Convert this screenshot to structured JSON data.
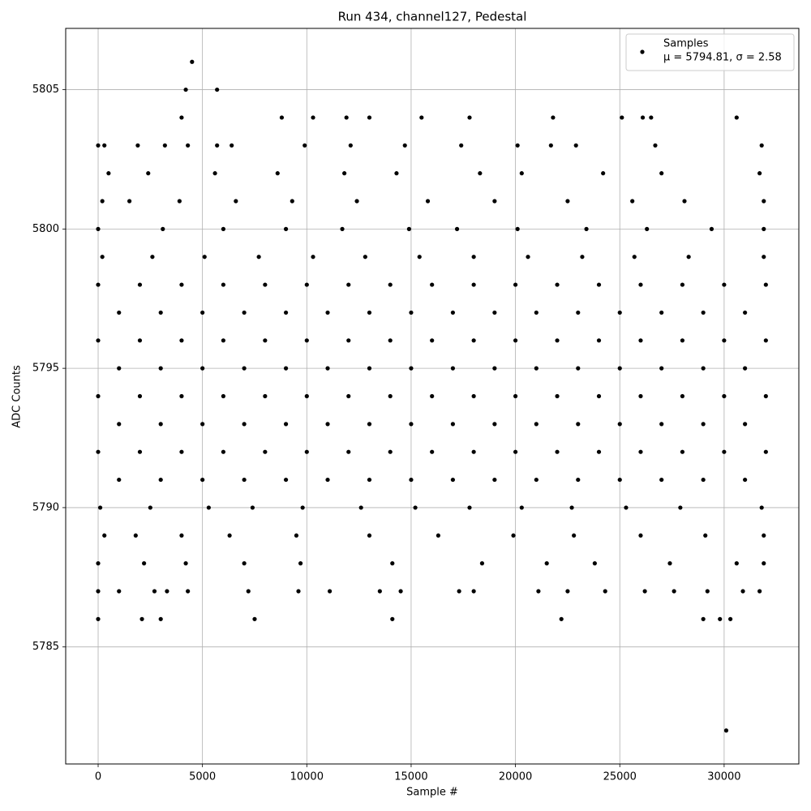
{
  "chart_data": {
    "type": "scatter",
    "title": "Run 434, channel127, Pedestal",
    "x_label": "Sample #",
    "y_label": "ADC Counts",
    "annotation": "μ = 5794.81, σ = 2.58",
    "xlim": [
      -1555,
      33580
    ],
    "ylim": [
      5780.8,
      5807.2
    ],
    "xticks": [
      0,
      5000,
      10000,
      15000,
      20000,
      25000,
      30000
    ],
    "yticks": [
      5785,
      5790,
      5795,
      5800,
      5805
    ],
    "grid": true,
    "legend": "upper right",
    "series": [
      {
        "name": "Samples",
        "color": "#000000",
        "x": [
          0,
          2000,
          4000,
          6000,
          8000,
          10000,
          12000,
          14000,
          16000,
          18000,
          20000,
          22000,
          24000,
          26000,
          28000,
          30000,
          32000,
          1000,
          3000,
          5000,
          7000,
          9000,
          11000,
          13000,
          15000,
          17000,
          19000,
          21000,
          23000,
          25000,
          27000,
          29000,
          31000,
          0,
          2000,
          4000,
          6000,
          8000,
          10000,
          12000,
          14000,
          16000,
          18000,
          20000,
          22000,
          24000,
          26000,
          28000,
          30000,
          32000,
          1000,
          3000,
          5000,
          7000,
          9000,
          11000,
          13000,
          15000,
          17000,
          19000,
          21000,
          23000,
          25000,
          27000,
          29000,
          31000,
          0,
          2000,
          4000,
          6000,
          8000,
          10000,
          12000,
          14000,
          16000,
          18000,
          20000,
          22000,
          24000,
          26000,
          28000,
          30000,
          32000,
          1000,
          3000,
          5000,
          7000,
          9000,
          11000,
          13000,
          15000,
          17000,
          19000,
          21000,
          23000,
          25000,
          27000,
          29000,
          31000,
          0,
          2000,
          4000,
          6000,
          8000,
          10000,
          12000,
          14000,
          16000,
          18000,
          20000,
          22000,
          24000,
          26000,
          28000,
          30000,
          32000,
          1000,
          3000,
          5000,
          7000,
          9000,
          11000,
          13000,
          15000,
          17000,
          19000,
          21000,
          23000,
          25000,
          27000,
          29000,
          31000,
          200,
          2600,
          5100,
          7700,
          10300,
          12800,
          15400,
          18000,
          20600,
          23200,
          25700,
          28300,
          31900,
          100,
          2500,
          5300,
          7400,
          9800,
          12600,
          15200,
          17800,
          20300,
          22700,
          25300,
          27900,
          31800,
          0,
          3100,
          6000,
          9000,
          11700,
          14900,
          17200,
          20100,
          23400,
          26300,
          29400,
          31900,
          200,
          1500,
          3900,
          6600,
          9300,
          12400,
          15800,
          19000,
          22500,
          25600,
          28100,
          31900,
          300,
          1800,
          4000,
          6300,
          9500,
          13000,
          16300,
          19900,
          22800,
          26000,
          29100,
          31900,
          500,
          2400,
          5600,
          8600,
          11800,
          14300,
          18300,
          20300,
          24200,
          27000,
          31700,
          0,
          2200,
          4200,
          7000,
          9700,
          14100,
          18400,
          21500,
          23800,
          27400,
          30600,
          31900,
          0,
          300,
          1900,
          3200,
          4300,
          5700,
          6400,
          9900,
          12100,
          14700,
          17400,
          20100,
          21700,
          22900,
          26700,
          31800,
          0,
          1000,
          2700,
          3300,
          4300,
          7200,
          9600,
          11100,
          13500,
          14500,
          17300,
          18000,
          21100,
          22500,
          24300,
          26200,
          27600,
          29200,
          30900,
          31700,
          0,
          2100,
          3000,
          7500,
          14100,
          22200,
          29000,
          29800,
          30300,
          4000,
          8800,
          10300,
          11900,
          13000,
          15500,
          17800,
          21800,
          25100,
          26100,
          26500,
          30600,
          4200,
          5700,
          4500,
          30100
        ],
        "values": [
          5798,
          5798,
          5798,
          5798,
          5798,
          5798,
          5798,
          5798,
          5798,
          5798,
          5798,
          5798,
          5798,
          5798,
          5798,
          5798,
          5798,
          5797,
          5797,
          5797,
          5797,
          5797,
          5797,
          5797,
          5797,
          5797,
          5797,
          5797,
          5797,
          5797,
          5797,
          5797,
          5797,
          5796,
          5796,
          5796,
          5796,
          5796,
          5796,
          5796,
          5796,
          5796,
          5796,
          5796,
          5796,
          5796,
          5796,
          5796,
          5796,
          5796,
          5795,
          5795,
          5795,
          5795,
          5795,
          5795,
          5795,
          5795,
          5795,
          5795,
          5795,
          5795,
          5795,
          5795,
          5795,
          5795,
          5794,
          5794,
          5794,
          5794,
          5794,
          5794,
          5794,
          5794,
          5794,
          5794,
          5794,
          5794,
          5794,
          5794,
          5794,
          5794,
          5794,
          5793,
          5793,
          5793,
          5793,
          5793,
          5793,
          5793,
          5793,
          5793,
          5793,
          5793,
          5793,
          5793,
          5793,
          5793,
          5793,
          5792,
          5792,
          5792,
          5792,
          5792,
          5792,
          5792,
          5792,
          5792,
          5792,
          5792,
          5792,
          5792,
          5792,
          5792,
          5792,
          5792,
          5791,
          5791,
          5791,
          5791,
          5791,
          5791,
          5791,
          5791,
          5791,
          5791,
          5791,
          5791,
          5791,
          5791,
          5791,
          5791,
          5799,
          5799,
          5799,
          5799,
          5799,
          5799,
          5799,
          5799,
          5799,
          5799,
          5799,
          5799,
          5799,
          5790,
          5790,
          5790,
          5790,
          5790,
          5790,
          5790,
          5790,
          5790,
          5790,
          5790,
          5790,
          5790,
          5800,
          5800,
          5800,
          5800,
          5800,
          5800,
          5800,
          5800,
          5800,
          5800,
          5800,
          5800,
          5801,
          5801,
          5801,
          5801,
          5801,
          5801,
          5801,
          5801,
          5801,
          5801,
          5801,
          5801,
          5789,
          5789,
          5789,
          5789,
          5789,
          5789,
          5789,
          5789,
          5789,
          5789,
          5789,
          5789,
          5802,
          5802,
          5802,
          5802,
          5802,
          5802,
          5802,
          5802,
          5802,
          5802,
          5802,
          5788,
          5788,
          5788,
          5788,
          5788,
          5788,
          5788,
          5788,
          5788,
          5788,
          5788,
          5788,
          5803,
          5803,
          5803,
          5803,
          5803,
          5803,
          5803,
          5803,
          5803,
          5803,
          5803,
          5803,
          5803,
          5803,
          5803,
          5803,
          5787,
          5787,
          5787,
          5787,
          5787,
          5787,
          5787,
          5787,
          5787,
          5787,
          5787,
          5787,
          5787,
          5787,
          5787,
          5787,
          5787,
          5787,
          5787,
          5787,
          5786,
          5786,
          5786,
          5786,
          5786,
          5786,
          5786,
          5786,
          5786,
          5804,
          5804,
          5804,
          5804,
          5804,
          5804,
          5804,
          5804,
          5804,
          5804,
          5804,
          5804,
          5805,
          5805,
          5806,
          5782
        ]
      }
    ]
  }
}
